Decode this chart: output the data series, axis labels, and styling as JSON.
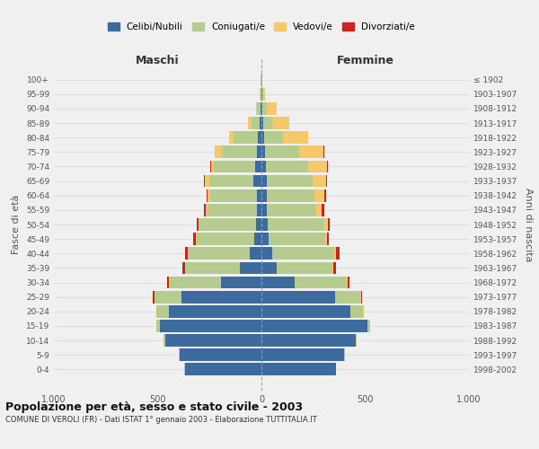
{
  "age_groups": [
    "0-4",
    "5-9",
    "10-14",
    "15-19",
    "20-24",
    "25-29",
    "30-34",
    "35-39",
    "40-44",
    "45-49",
    "50-54",
    "55-59",
    "60-64",
    "65-69",
    "70-74",
    "75-79",
    "80-84",
    "85-89",
    "90-94",
    "95-99",
    "100+"
  ],
  "birth_years": [
    "1998-2002",
    "1993-1997",
    "1988-1992",
    "1983-1987",
    "1978-1982",
    "1973-1977",
    "1968-1972",
    "1963-1967",
    "1958-1962",
    "1953-1957",
    "1948-1952",
    "1943-1947",
    "1938-1942",
    "1933-1937",
    "1928-1932",
    "1923-1927",
    "1918-1922",
    "1913-1917",
    "1908-1912",
    "1903-1907",
    "≤ 1902"
  ],
  "male": {
    "celibi": [
      370,
      395,
      465,
      490,
      445,
      385,
      195,
      105,
      55,
      35,
      28,
      22,
      20,
      40,
      30,
      22,
      18,
      7,
      4,
      2,
      2
    ],
    "coniugati": [
      1,
      2,
      5,
      15,
      60,
      130,
      248,
      262,
      298,
      278,
      272,
      238,
      228,
      212,
      198,
      168,
      118,
      42,
      16,
      4,
      1
    ],
    "vedovi": [
      0,
      0,
      0,
      0,
      1,
      2,
      2,
      2,
      2,
      2,
      5,
      8,
      10,
      20,
      15,
      35,
      20,
      15,
      5,
      1,
      0
    ],
    "divorziati": [
      0,
      0,
      0,
      1,
      2,
      5,
      8,
      10,
      12,
      12,
      5,
      10,
      8,
      4,
      5,
      2,
      1,
      1,
      0,
      0,
      0
    ]
  },
  "female": {
    "nubili": [
      360,
      400,
      455,
      510,
      430,
      355,
      160,
      75,
      50,
      35,
      30,
      25,
      25,
      28,
      22,
      18,
      12,
      8,
      4,
      3,
      2
    ],
    "coniugate": [
      1,
      2,
      5,
      12,
      60,
      122,
      252,
      268,
      302,
      272,
      272,
      238,
      232,
      218,
      202,
      162,
      92,
      46,
      20,
      5,
      1
    ],
    "vedove": [
      0,
      0,
      0,
      1,
      2,
      2,
      4,
      5,
      8,
      8,
      20,
      28,
      45,
      65,
      90,
      120,
      120,
      80,
      50,
      8,
      0
    ],
    "divorziate": [
      0,
      0,
      0,
      1,
      2,
      5,
      10,
      10,
      15,
      10,
      8,
      10,
      8,
      3,
      5,
      2,
      2,
      0,
      0,
      0,
      0
    ]
  },
  "colors": {
    "celibi_nubili": "#3d6b9e",
    "coniugati_e": "#b5cc8e",
    "vedovi_e": "#f5c96a",
    "divorziati_e": "#cc2222"
  },
  "xlim": 1000,
  "title": "Popolazione per età, sesso e stato civile - 2003",
  "subtitle": "COMUNE DI VEROLI (FR) - Dati ISTAT 1° gennaio 2003 - Elaborazione TUTTITALIA.IT",
  "xlabel_left": "Maschi",
  "xlabel_right": "Femmine",
  "ylabel_left": "Fasce di età",
  "ylabel_right": "Anni di nascita",
  "legend_labels": [
    "Celibi/Nubili",
    "Coniugati/e",
    "Vedovi/e",
    "Divorziati/e"
  ],
  "background_color": "#f0f0f0",
  "grid_color": "#cccccc"
}
